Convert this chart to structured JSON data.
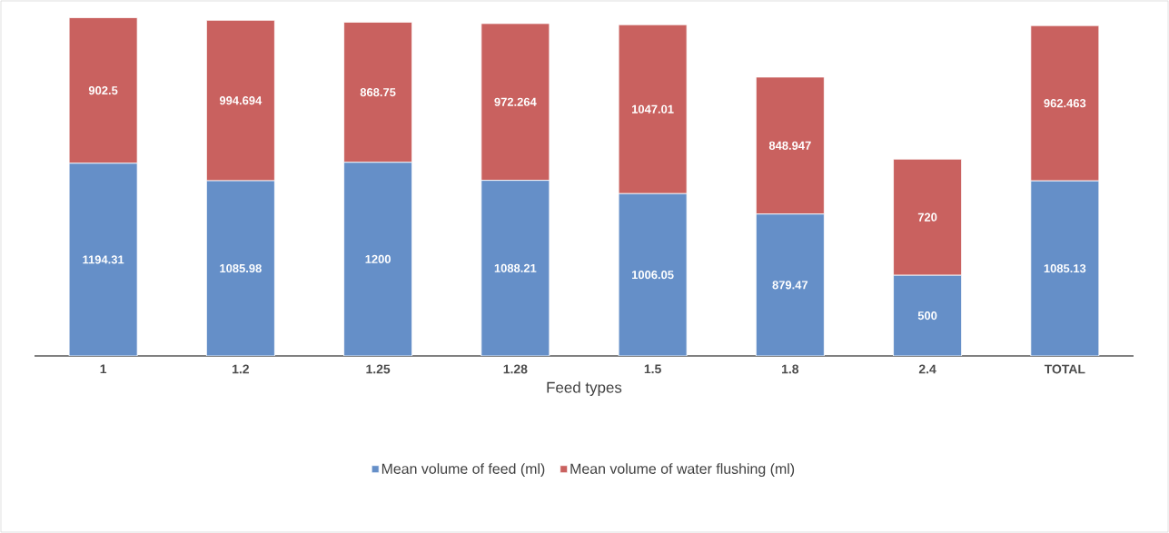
{
  "chart_data": {
    "type": "bar",
    "stacked": true,
    "xlabel": "Feed types",
    "categories": [
      "1",
      "1.2",
      "1.25",
      "1.28",
      "1.5",
      "1.8",
      "2.4",
      "TOTAL"
    ],
    "series": [
      {
        "name": "Mean volume of feed (ml)",
        "color": "#658fc8",
        "values": [
          1194.31,
          1085.98,
          1200,
          1088.21,
          1006.05,
          879.47,
          500,
          1085.13
        ]
      },
      {
        "name": "Mean volume of water flushing (ml)",
        "color": "#c9615f",
        "values": [
          902.5,
          994.694,
          868.75,
          972.264,
          1047.01,
          848.947,
          720,
          962.463
        ]
      }
    ],
    "data_labels": true,
    "legend": "bottom"
  }
}
